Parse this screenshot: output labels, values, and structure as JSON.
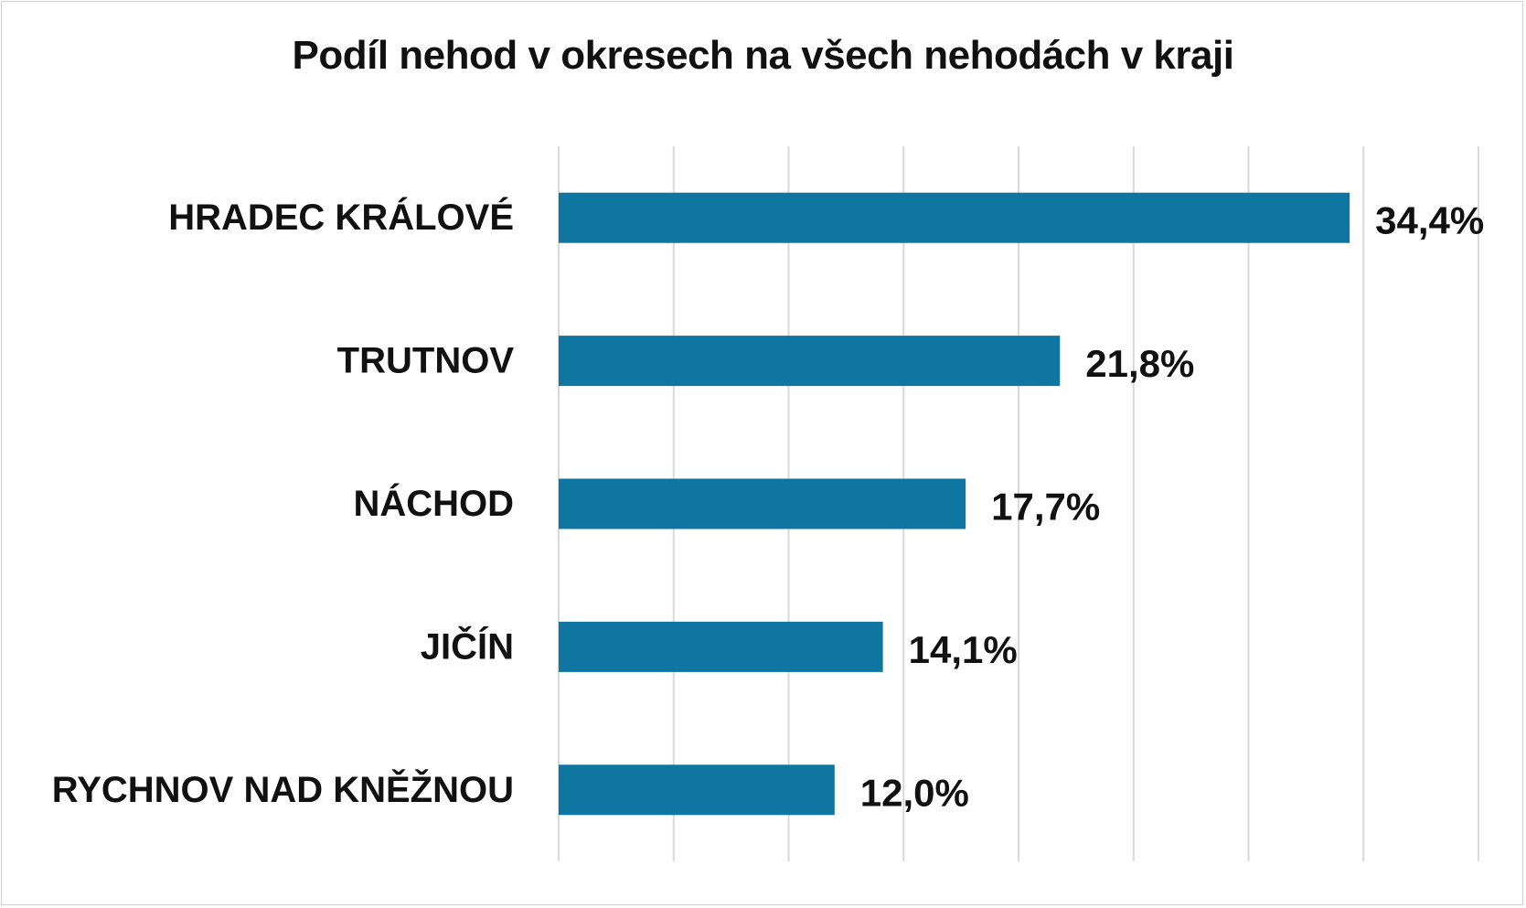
{
  "chart_data": {
    "type": "bar",
    "orientation": "horizontal",
    "title": "Podíl nehod v okresech na všech nehodách v kraji",
    "categories": [
      "HRADEC KRÁLOVÉ",
      "TRUTNOV",
      "NÁCHOD",
      "JIČÍN",
      "RYCHNOV NAD KNĚŽNOU"
    ],
    "values": [
      34.4,
      21.8,
      17.7,
      14.1,
      12.0
    ],
    "value_labels": [
      "34,4%",
      "21,8%",
      "17,7%",
      "14,1%",
      "12,0%"
    ],
    "xlim": [
      0,
      40
    ],
    "grid": true,
    "legend": "none",
    "colors": {
      "bar": "#0e76a0",
      "grid": "#d9d9d9",
      "text": "#111111"
    }
  }
}
